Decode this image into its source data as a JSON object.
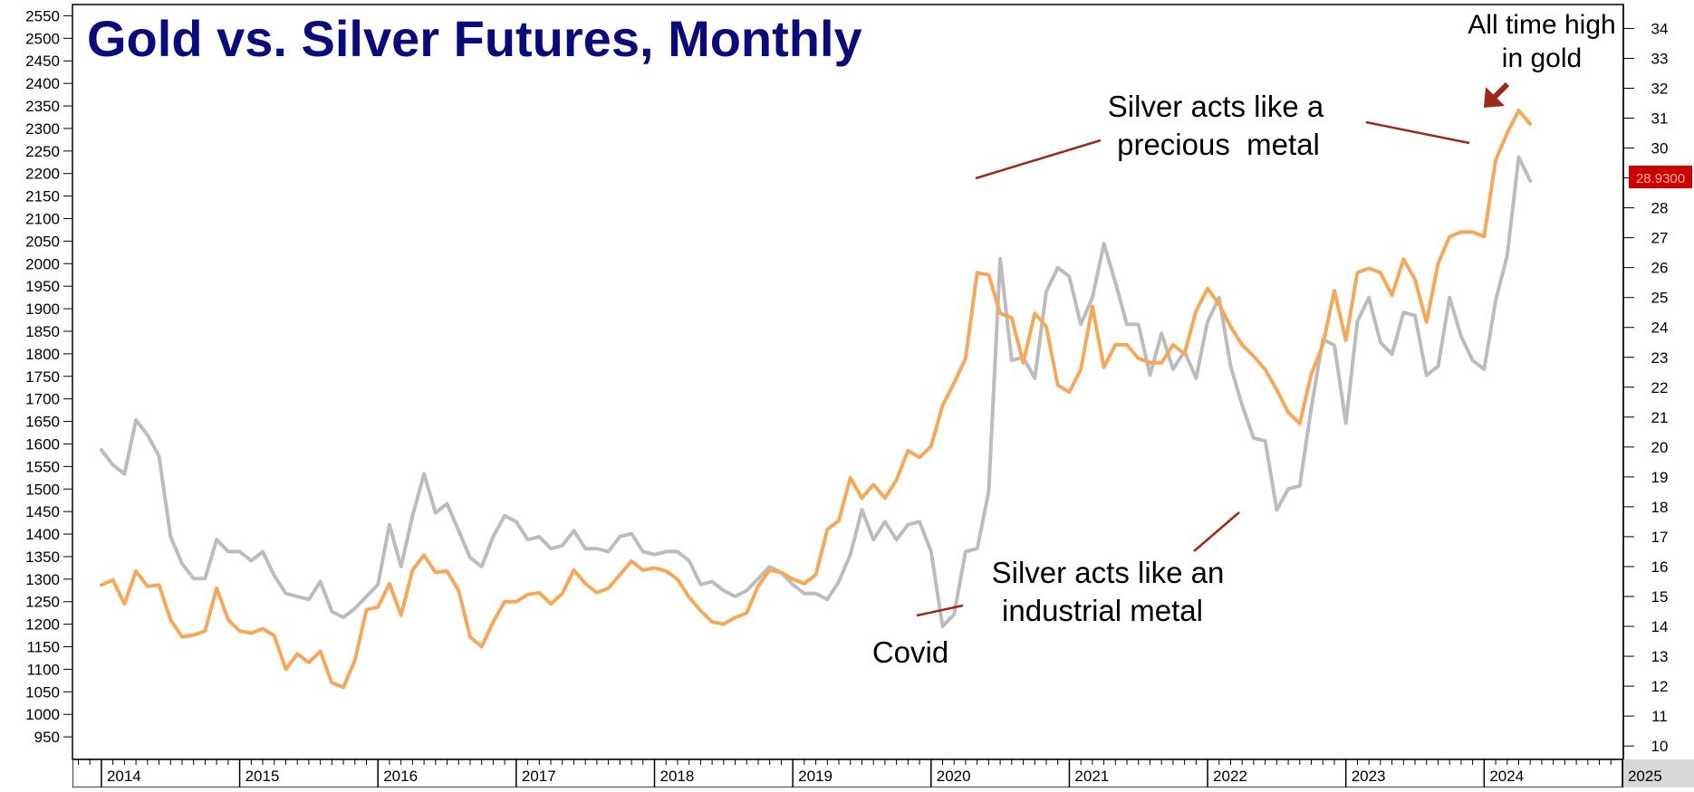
{
  "chart_data": {
    "type": "line",
    "title": "Gold vs. Silver Futures, Monthly",
    "x_tick_labels": [
      "2014",
      "2015",
      "2016",
      "2017",
      "2018",
      "2019",
      "2020",
      "2021",
      "2022",
      "2023",
      "2024",
      "2025"
    ],
    "x_range": [
      "2013-11",
      "2025-05"
    ],
    "y_left": {
      "range": [
        900,
        2575
      ],
      "ticks": [
        950,
        1000,
        1050,
        1100,
        1150,
        1200,
        1250,
        1300,
        1350,
        1400,
        1450,
        1500,
        1550,
        1600,
        1650,
        1700,
        1750,
        1800,
        1850,
        1900,
        1950,
        2000,
        2050,
        2100,
        2150,
        2200,
        2250,
        2300,
        2350,
        2400,
        2450,
        2500,
        2550
      ]
    },
    "y_right": {
      "range": [
        9.55,
        34.8
      ],
      "ticks": [
        10,
        11,
        12,
        13,
        14,
        15,
        16,
        17,
        18,
        19,
        20,
        21,
        22,
        23,
        24,
        25,
        26,
        27,
        28,
        29,
        30,
        31,
        32,
        33,
        34
      ]
    },
    "last_value_label": "28.9300",
    "colors": {
      "gold": "#f5a85a",
      "silver": "#bcbcbc",
      "annotation": "#9c2a1a",
      "title": "#0a0a7a",
      "last_value_bg": "#cc0000",
      "last_value_text": "#ff3030"
    },
    "grid": false,
    "legend": "none",
    "series": [
      {
        "axis": "left",
        "color": "#f5a85a",
        "start": "2014-01",
        "values": [
          1287,
          1298,
          1245,
          1318,
          1284,
          1287,
          1210,
          1172,
          1176,
          1185,
          1280,
          1210,
          1185,
          1180,
          1190,
          1175,
          1100,
          1134,
          1115,
          1140,
          1070,
          1060,
          1120,
          1232,
          1238,
          1290,
          1220,
          1320,
          1353,
          1315,
          1318,
          1275,
          1172,
          1150,
          1205,
          1250,
          1250,
          1266,
          1270,
          1245,
          1268,
          1320,
          1290,
          1270,
          1280,
          1310,
          1340,
          1320,
          1325,
          1318,
          1300,
          1260,
          1230,
          1205,
          1200,
          1215,
          1225,
          1285,
          1320,
          1315,
          1300,
          1290,
          1310,
          1410,
          1430,
          1525,
          1480,
          1510,
          1480,
          1520,
          1585,
          1570,
          1595,
          1685,
          1735,
          1790,
          1980,
          1975,
          1890,
          1880,
          1780,
          1890,
          1860,
          1730,
          1715,
          1765,
          1905,
          1770,
          1820,
          1820,
          1790,
          1780,
          1780,
          1820,
          1800,
          1895,
          1945,
          1910,
          1860,
          1820,
          1795,
          1765,
          1720,
          1670,
          1645,
          1755,
          1820,
          1940,
          1830,
          1980,
          1990,
          1980,
          1930,
          2010,
          1965,
          1870,
          2000,
          2060,
          2070,
          2070,
          2060,
          2230,
          2290,
          2340,
          2310
        ]
      },
      {
        "axis": "right",
        "color": "#bcbcbc",
        "start": "2014-01",
        "values": [
          19.9,
          19.4,
          19.1,
          20.9,
          20.4,
          19.7,
          17.0,
          16.1,
          15.6,
          15.6,
          16.9,
          16.5,
          16.5,
          16.2,
          16.5,
          15.7,
          15.1,
          15.0,
          14.9,
          15.5,
          14.5,
          14.3,
          14.6,
          15.0,
          15.4,
          17.4,
          16.0,
          17.7,
          19.1,
          17.8,
          18.1,
          17.2,
          16.3,
          16.0,
          17.0,
          17.7,
          17.5,
          16.9,
          17.0,
          16.6,
          16.7,
          17.2,
          16.6,
          16.6,
          16.5,
          17.0,
          17.1,
          16.5,
          16.4,
          16.5,
          16.5,
          16.2,
          15.4,
          15.5,
          15.2,
          15.0,
          15.2,
          15.6,
          16.0,
          15.8,
          15.4,
          15.1,
          15.1,
          14.9,
          15.5,
          16.4,
          17.9,
          16.9,
          17.5,
          16.9,
          17.4,
          17.5,
          16.5,
          14.0,
          14.4,
          16.5,
          16.6,
          18.5,
          26.3,
          22.9,
          23.0,
          22.3,
          25.2,
          26.0,
          25.7,
          24.1,
          25.0,
          26.8,
          25.5,
          24.1,
          24.1,
          22.4,
          23.8,
          22.6,
          23.2,
          22.3,
          24.2,
          25.0,
          22.7,
          21.4,
          20.3,
          20.2,
          17.9,
          18.6,
          18.7,
          21.3,
          23.6,
          23.4,
          20.8,
          24.2,
          25.0,
          23.5,
          23.1,
          24.5,
          24.4,
          22.4,
          22.7,
          25.0,
          23.7,
          22.9,
          22.6,
          24.9,
          26.4,
          29.7,
          28.9
        ]
      }
    ],
    "annotations": [
      {
        "text": "Silver acts like a precious metal"
      },
      {
        "text": "Silver acts like an industrial metal"
      },
      {
        "text": "Covid"
      },
      {
        "text": "All time high in gold"
      }
    ]
  },
  "annotation_text": {
    "title": "Gold vs. Silver Futures, Monthly",
    "precious_line1": "Silver acts like a",
    "precious_line2": "precious  metal",
    "industrial_line1": "Silver acts like an",
    "industrial_line2": "industrial metal",
    "covid": "Covid",
    "ath_line1": "All time high",
    "ath_line2": "in gold"
  }
}
